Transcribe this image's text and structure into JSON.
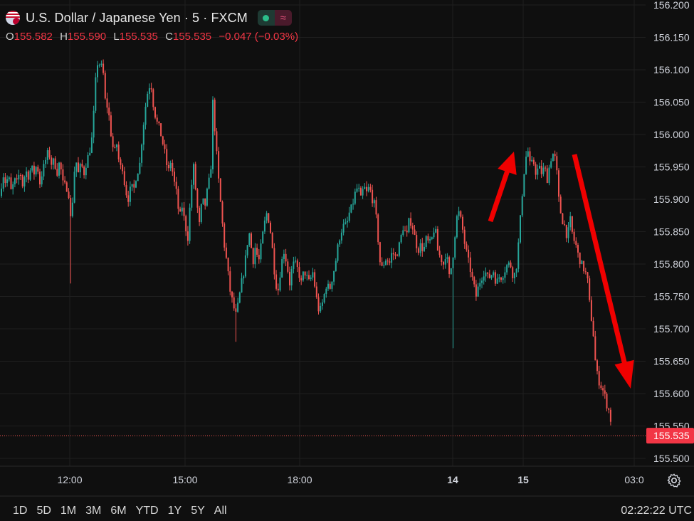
{
  "header": {
    "title": "U.S. Dollar / Japanese Yen · 5 · FXCM",
    "ohlc": {
      "o_label": "O",
      "o_value": "155.582",
      "h_label": "H",
      "h_value": "155.590",
      "l_label": "L",
      "l_value": "155.535",
      "c_label": "C",
      "c_value": "155.535",
      "change": "−0.047 (−0.03%)"
    }
  },
  "colors": {
    "up": "#26a69a",
    "down": "#ef5350",
    "arrow": "#f00000",
    "background": "#0f0f0f",
    "grid": "#1f1f1f"
  },
  "icons": {
    "flag": "usd-jpy-flag-icon",
    "settings": "gear-icon"
  },
  "price_axis": {
    "ticks": [
      "156.200",
      "156.150",
      "156.100",
      "156.050",
      "156.000",
      "155.950",
      "155.900",
      "155.850",
      "155.800",
      "155.750",
      "155.700",
      "155.650",
      "155.600",
      "155.550",
      "155.500"
    ],
    "last_price": "155.535"
  },
  "time_axis": {
    "ticks": [
      "12:00",
      "15:00",
      "18:00",
      "14",
      "15",
      "03:0"
    ]
  },
  "timeframes": [
    "1D",
    "5D",
    "1M",
    "3M",
    "6M",
    "YTD",
    "1Y",
    "5Y",
    "All"
  ],
  "clock": "02:22:22 UTC",
  "chart_data": {
    "type": "candlestick",
    "symbol": "U.S. Dollar / Japanese Yen",
    "interval": "5",
    "source": "FXCM",
    "ylim": [
      155.49,
      156.205
    ],
    "annotations": [
      "up-arrow",
      "down-arrow"
    ],
    "close_path": [
      [
        0,
        155.905
      ],
      [
        4,
        155.94
      ],
      [
        8,
        155.925
      ],
      [
        12,
        155.935
      ],
      [
        16,
        155.91
      ],
      [
        20,
        155.93
      ],
      [
        24,
        155.925
      ],
      [
        28,
        155.945
      ],
      [
        32,
        155.92
      ],
      [
        36,
        155.945
      ],
      [
        40,
        155.935
      ],
      [
        44,
        155.95
      ],
      [
        48,
        155.94
      ],
      [
        52,
        155.955
      ],
      [
        56,
        155.925
      ],
      [
        60,
        155.945
      ],
      [
        64,
        155.96
      ],
      [
        68,
        155.975
      ],
      [
        72,
        155.955
      ],
      [
        76,
        155.96
      ],
      [
        80,
        155.94
      ],
      [
        84,
        155.96
      ],
      [
        88,
        155.925
      ],
      [
        92,
        155.92
      ],
      [
        96,
        155.915
      ],
      [
        100,
        155.86
      ],
      [
        103,
        155.92
      ],
      [
        106,
        155.965
      ],
      [
        110,
        155.94
      ],
      [
        114,
        155.955
      ],
      [
        118,
        155.94
      ],
      [
        122,
        155.96
      ],
      [
        126,
        155.975
      ],
      [
        130,
        156.0
      ],
      [
        134,
        156.08
      ],
      [
        138,
        156.12
      ],
      [
        141,
        156.1
      ],
      [
        144,
        156.11
      ],
      [
        148,
        156.05
      ],
      [
        152,
        156.04
      ],
      [
        156,
        156.0
      ],
      [
        160,
        155.97
      ],
      [
        164,
        155.985
      ],
      [
        168,
        155.95
      ],
      [
        172,
        155.95
      ],
      [
        176,
        155.915
      ],
      [
        180,
        155.9
      ],
      [
        184,
        155.92
      ],
      [
        188,
        155.915
      ],
      [
        192,
        155.94
      ],
      [
        196,
        155.95
      ],
      [
        200,
        156.0
      ],
      [
        204,
        156.04
      ],
      [
        208,
        156.07
      ],
      [
        212,
        156.08
      ],
      [
        216,
        156.04
      ],
      [
        220,
        156.02
      ],
      [
        224,
        156.01
      ],
      [
        228,
        155.99
      ],
      [
        232,
        155.97
      ],
      [
        236,
        155.94
      ],
      [
        240,
        155.96
      ],
      [
        244,
        155.93
      ],
      [
        248,
        155.91
      ],
      [
        252,
        155.87
      ],
      [
        256,
        155.89
      ],
      [
        260,
        155.86
      ],
      [
        264,
        155.84
      ],
      [
        268,
        155.91
      ],
      [
        272,
        155.95
      ],
      [
        276,
        155.9
      ],
      [
        280,
        155.86
      ],
      [
        284,
        155.9
      ],
      [
        288,
        155.89
      ],
      [
        292,
        155.92
      ],
      [
        296,
        155.94
      ],
      [
        299,
        156.05
      ],
      [
        303,
        155.99
      ],
      [
        307,
        155.93
      ],
      [
        311,
        155.88
      ],
      [
        315,
        155.83
      ],
      [
        319,
        155.8
      ],
      [
        323,
        155.76
      ],
      [
        327,
        155.74
      ],
      [
        331,
        155.72
      ],
      [
        335,
        155.74
      ],
      [
        339,
        155.77
      ],
      [
        343,
        155.79
      ],
      [
        347,
        155.83
      ],
      [
        351,
        155.85
      ],
      [
        355,
        155.8
      ],
      [
        359,
        155.83
      ],
      [
        363,
        155.8
      ],
      [
        367,
        155.83
      ],
      [
        371,
        155.86
      ],
      [
        375,
        155.88
      ],
      [
        379,
        155.86
      ],
      [
        383,
        155.82
      ],
      [
        387,
        155.77
      ],
      [
        391,
        155.76
      ],
      [
        395,
        155.8
      ],
      [
        399,
        155.82
      ],
      [
        403,
        155.8
      ],
      [
        407,
        155.77
      ],
      [
        411,
        155.8
      ],
      [
        415,
        155.8
      ],
      [
        419,
        155.79
      ],
      [
        423,
        155.77
      ],
      [
        427,
        155.79
      ],
      [
        431,
        155.78
      ],
      [
        435,
        155.77
      ],
      [
        439,
        155.79
      ],
      [
        443,
        155.76
      ],
      [
        447,
        155.73
      ],
      [
        451,
        155.73
      ],
      [
        455,
        155.75
      ],
      [
        459,
        155.77
      ],
      [
        463,
        155.76
      ],
      [
        467,
        155.78
      ],
      [
        471,
        155.8
      ],
      [
        475,
        155.83
      ],
      [
        479,
        155.85
      ],
      [
        483,
        155.86
      ],
      [
        487,
        155.86
      ],
      [
        491,
        155.88
      ],
      [
        495,
        155.89
      ],
      [
        499,
        155.91
      ],
      [
        503,
        155.92
      ],
      [
        507,
        155.9
      ],
      [
        511,
        155.92
      ],
      [
        515,
        155.91
      ],
      [
        519,
        155.92
      ],
      [
        523,
        155.9
      ],
      [
        527,
        155.89
      ],
      [
        531,
        155.84
      ],
      [
        535,
        155.79
      ],
      [
        539,
        155.8
      ],
      [
        543,
        155.81
      ],
      [
        547,
        155.8
      ],
      [
        551,
        155.82
      ],
      [
        555,
        155.81
      ],
      [
        559,
        155.82
      ],
      [
        563,
        155.84
      ],
      [
        567,
        155.86
      ],
      [
        571,
        155.84
      ],
      [
        575,
        155.87
      ],
      [
        579,
        155.86
      ],
      [
        583,
        155.84
      ],
      [
        587,
        155.82
      ],
      [
        591,
        155.83
      ],
      [
        595,
        155.82
      ],
      [
        599,
        155.84
      ],
      [
        603,
        155.83
      ],
      [
        607,
        155.84
      ],
      [
        611,
        155.86
      ],
      [
        615,
        155.82
      ],
      [
        619,
        155.81
      ],
      [
        623,
        155.8
      ],
      [
        627,
        155.82
      ],
      [
        631,
        155.78
      ],
      [
        635,
        155.8
      ],
      [
        638,
        155.83
      ],
      [
        641,
        155.87
      ],
      [
        645,
        155.88
      ],
      [
        649,
        155.86
      ],
      [
        653,
        155.83
      ],
      [
        657,
        155.81
      ],
      [
        661,
        155.79
      ],
      [
        665,
        155.77
      ],
      [
        669,
        155.75
      ],
      [
        673,
        155.77
      ],
      [
        677,
        155.78
      ],
      [
        681,
        155.79
      ],
      [
        685,
        155.78
      ],
      [
        689,
        155.78
      ],
      [
        693,
        155.79
      ],
      [
        697,
        155.77
      ],
      [
        701,
        155.78
      ],
      [
        705,
        155.78
      ],
      [
        709,
        155.79
      ],
      [
        713,
        155.8
      ],
      [
        717,
        155.8
      ],
      [
        721,
        155.78
      ],
      [
        725,
        155.79
      ],
      [
        729,
        155.84
      ],
      [
        733,
        155.9
      ],
      [
        737,
        155.95
      ],
      [
        741,
        155.98
      ],
      [
        745,
        155.95
      ],
      [
        749,
        155.96
      ],
      [
        753,
        155.94
      ],
      [
        757,
        155.95
      ],
      [
        761,
        155.94
      ],
      [
        765,
        155.95
      ],
      [
        769,
        155.93
      ],
      [
        773,
        155.96
      ],
      [
        777,
        155.97
      ],
      [
        781,
        155.96
      ],
      [
        785,
        155.9
      ],
      [
        789,
        155.87
      ],
      [
        793,
        155.86
      ],
      [
        797,
        155.84
      ],
      [
        801,
        155.87
      ],
      [
        805,
        155.84
      ],
      [
        809,
        155.83
      ],
      [
        813,
        155.81
      ],
      [
        817,
        155.8
      ],
      [
        821,
        155.79
      ],
      [
        825,
        155.78
      ],
      [
        829,
        155.73
      ],
      [
        833,
        155.7
      ],
      [
        837,
        155.64
      ],
      [
        841,
        155.62
      ],
      [
        845,
        155.61
      ],
      [
        849,
        155.6
      ],
      [
        853,
        155.58
      ],
      [
        857,
        155.57
      ],
      [
        860,
        155.535
      ]
    ],
    "spike_wicks": [
      {
        "x": 99,
        "low": 155.77
      },
      {
        "x": 332,
        "low": 155.68
      },
      {
        "x": 637,
        "low": 155.67
      }
    ],
    "last": 155.535
  }
}
